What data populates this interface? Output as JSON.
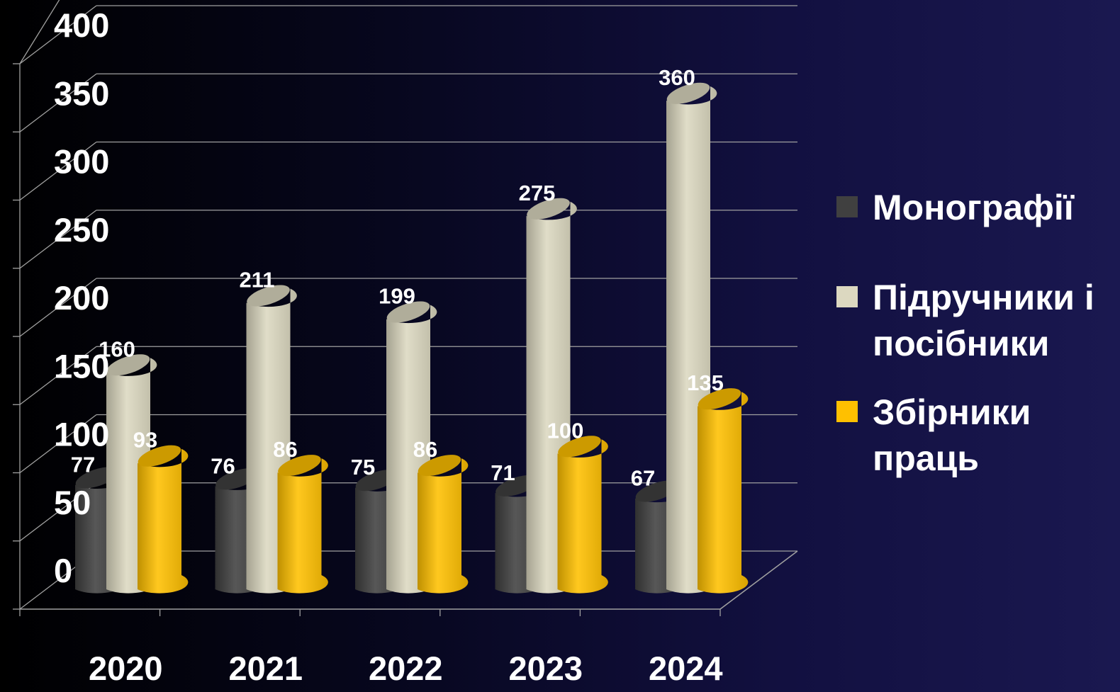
{
  "chart_data": {
    "type": "bar",
    "title": "",
    "xlabel": "",
    "ylabel": "",
    "categories": [
      "2020",
      "2021",
      "2022",
      "2023",
      "2024"
    ],
    "series": [
      {
        "name": "Монографії",
        "color": "#404040",
        "values": [
          77,
          76,
          75,
          71,
          67
        ]
      },
      {
        "name": "Підручники і посібники",
        "color": "#dcd8c0",
        "values": [
          160,
          211,
          199,
          275,
          360
        ]
      },
      {
        "name": "Збірники праць",
        "color": "#ffc000",
        "values": [
          93,
          86,
          86,
          100,
          135
        ]
      }
    ],
    "ylim": [
      0,
      400
    ],
    "yticks": [
      "0",
      "50",
      "100",
      "150",
      "200",
      "250",
      "300",
      "350",
      "400"
    ],
    "grid": true,
    "legend_position": "right",
    "legend_lines": [
      [
        "Монографії"
      ],
      [
        "Підручники і",
        "посібники"
      ],
      [
        "Збірники",
        "праць"
      ]
    ],
    "bar_shape": "3d-cylinder"
  }
}
